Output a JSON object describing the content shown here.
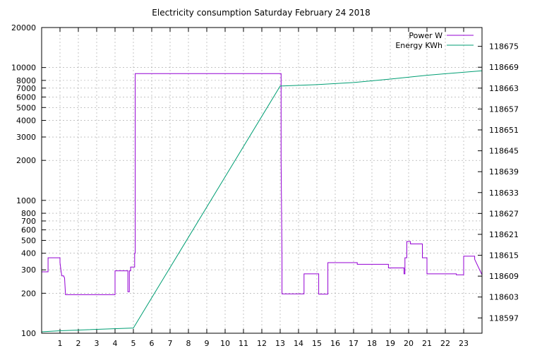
{
  "chart_data": {
    "type": "line",
    "title": "Electricity consumption Saturday February 24 2018",
    "grid": true,
    "legend_placement": "top-right",
    "x": {
      "range": [
        0,
        24
      ],
      "tick_values": [
        1,
        2,
        3,
        4,
        5,
        6,
        7,
        8,
        9,
        10,
        11,
        12,
        13,
        14,
        15,
        16,
        17,
        18,
        19,
        20,
        21,
        22,
        23
      ],
      "tick_labels": [
        "1",
        "2",
        "3",
        "4",
        "5",
        "6",
        "7",
        "8",
        "9",
        "10",
        "11",
        "12",
        "13",
        "14",
        "15",
        "16",
        "17",
        "18",
        "19",
        "20",
        "21",
        "22",
        "23"
      ]
    },
    "y_left": {
      "scale": "log",
      "range": [
        100,
        20000
      ],
      "tick_values": [
        100,
        200,
        300,
        400,
        500,
        600,
        700,
        800,
        1000,
        2000,
        3000,
        4000,
        5000,
        6000,
        7000,
        8000,
        10000,
        20000
      ],
      "tick_labels": [
        "100",
        "200",
        "300",
        "400",
        "500",
        "600",
        "700",
        "800",
        "1000",
        "2000",
        "3000",
        "4000",
        "5000",
        "6000",
        "7000",
        "8000",
        "10000",
        "20000"
      ]
    },
    "y_right": {
      "scale": "linear",
      "range": [
        118592.6,
        118680.4
      ],
      "tick_values": [
        118597,
        118603,
        118609,
        118615,
        118621,
        118627,
        118633,
        118639,
        118645,
        118651,
        118657,
        118663,
        118669,
        118675
      ],
      "tick_labels": [
        "118597",
        "118603",
        "118609",
        "118615",
        "118621",
        "118627",
        "118633",
        "118639",
        "118645",
        "118651",
        "118657",
        "118663",
        "118669",
        "118675"
      ]
    },
    "series": [
      {
        "name": "Power W",
        "axis": "left",
        "color": "#9400d3",
        "x": [
          0,
          0.35,
          0.35,
          1,
          1,
          1.05,
          1.1,
          1.2,
          1.25,
          1.3,
          4,
          4,
          4.7,
          4.7,
          4.78,
          4.78,
          4.85,
          4.85,
          5.07,
          5.07,
          5.1,
          5.1,
          13.05,
          13.05,
          13.1,
          13.1,
          14.3,
          14.3,
          15.1,
          15.1,
          15.6,
          15.6,
          17.2,
          17.2,
          18.9,
          18.9,
          19.75,
          19.75,
          19.8,
          19.8,
          19.9,
          19.9,
          20.1,
          20.1,
          20.75,
          20.75,
          21,
          21,
          22.6,
          22.6,
          23,
          23,
          23.6,
          23.6,
          24
        ],
        "values": [
          290,
          290,
          370,
          370,
          340,
          300,
          270,
          270,
          260,
          195,
          195,
          295,
          295,
          205,
          205,
          295,
          295,
          315,
          315,
          400,
          400,
          9000,
          9000,
          2000,
          360,
          198,
          198,
          280,
          280,
          197,
          197,
          340,
          340,
          330,
          330,
          310,
          310,
          280,
          280,
          370,
          370,
          490,
          490,
          470,
          470,
          370,
          370,
          280,
          280,
          275,
          275,
          380,
          380,
          360,
          275
        ]
      },
      {
        "name": "Energy KWh",
        "axis": "right",
        "color": "#009e73",
        "x": [
          0,
          1,
          5,
          13,
          15,
          17,
          19,
          21,
          24
        ],
        "values": [
          118593.0,
          118593.3,
          118594.1,
          118663.6,
          118664.0,
          118664.6,
          118665.6,
          118666.7,
          118668.0
        ]
      }
    ]
  }
}
